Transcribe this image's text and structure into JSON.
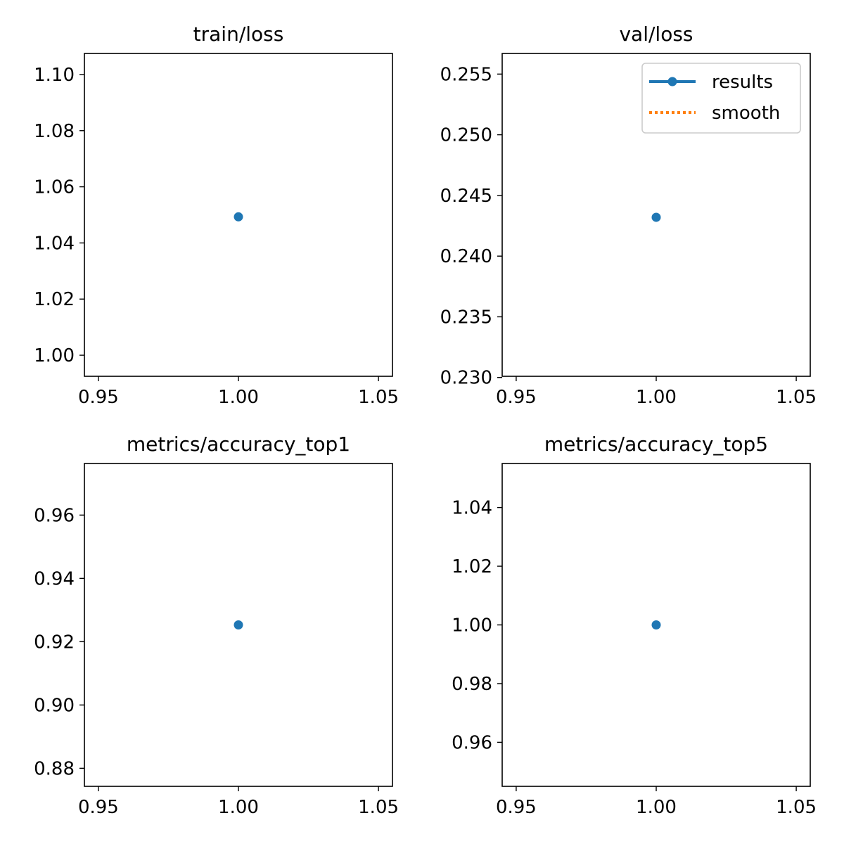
{
  "colors": {
    "results": "#1f77b4",
    "smooth": "#ff7f0e"
  },
  "legend": {
    "placement": "upper-right",
    "panel": 1,
    "entries": [
      "results",
      "smooth"
    ]
  },
  "chart_data": [
    {
      "type": "line",
      "title": "train/loss",
      "xlim": [
        0.945,
        1.055
      ],
      "ylim": [
        0.9925,
        1.1075
      ],
      "xticks": [
        0.95,
        1.0,
        1.05
      ],
      "xtick_labels": [
        "0.95",
        "1.00",
        "1.05"
      ],
      "yticks": [
        1.0,
        1.02,
        1.04,
        1.06,
        1.08,
        1.1
      ],
      "ytick_labels": [
        "1.00",
        "1.02",
        "1.04",
        "1.06",
        "1.08",
        "1.10"
      ],
      "series": [
        {
          "name": "results",
          "x": [
            1
          ],
          "y": [
            1.0493
          ]
        }
      ]
    },
    {
      "type": "line",
      "title": "val/loss",
      "xlim": [
        0.945,
        1.055
      ],
      "ylim": [
        0.2301,
        0.2567
      ],
      "xticks": [
        0.95,
        1.0,
        1.05
      ],
      "xtick_labels": [
        "0.95",
        "1.00",
        "1.05"
      ],
      "yticks": [
        0.23,
        0.235,
        0.24,
        0.245,
        0.25,
        0.255
      ],
      "ytick_labels": [
        "0.230",
        "0.235",
        "0.240",
        "0.245",
        "0.250",
        "0.255"
      ],
      "series": [
        {
          "name": "results",
          "x": [
            1
          ],
          "y": [
            0.2432
          ]
        }
      ]
    },
    {
      "type": "line",
      "title": "metrics/accuracy_top1",
      "xlim": [
        0.945,
        1.055
      ],
      "ylim": [
        0.8743,
        0.9763
      ],
      "xticks": [
        0.95,
        1.0,
        1.05
      ],
      "xtick_labels": [
        "0.95",
        "1.00",
        "1.05"
      ],
      "yticks": [
        0.88,
        0.9,
        0.92,
        0.94,
        0.96
      ],
      "ytick_labels": [
        "0.88",
        "0.90",
        "0.92",
        "0.94",
        "0.96"
      ],
      "series": [
        {
          "name": "results",
          "x": [
            1
          ],
          "y": [
            0.9253
          ]
        }
      ]
    },
    {
      "type": "line",
      "title": "metrics/accuracy_top5",
      "xlim": [
        0.945,
        1.055
      ],
      "ylim": [
        0.945,
        1.055
      ],
      "xticks": [
        0.95,
        1.0,
        1.05
      ],
      "xtick_labels": [
        "0.95",
        "1.00",
        "1.05"
      ],
      "yticks": [
        0.96,
        0.98,
        1.0,
        1.02,
        1.04
      ],
      "ytick_labels": [
        "0.96",
        "0.98",
        "1.00",
        "1.02",
        "1.04"
      ],
      "series": [
        {
          "name": "results",
          "x": [
            1
          ],
          "y": [
            1.0
          ]
        }
      ]
    }
  ]
}
